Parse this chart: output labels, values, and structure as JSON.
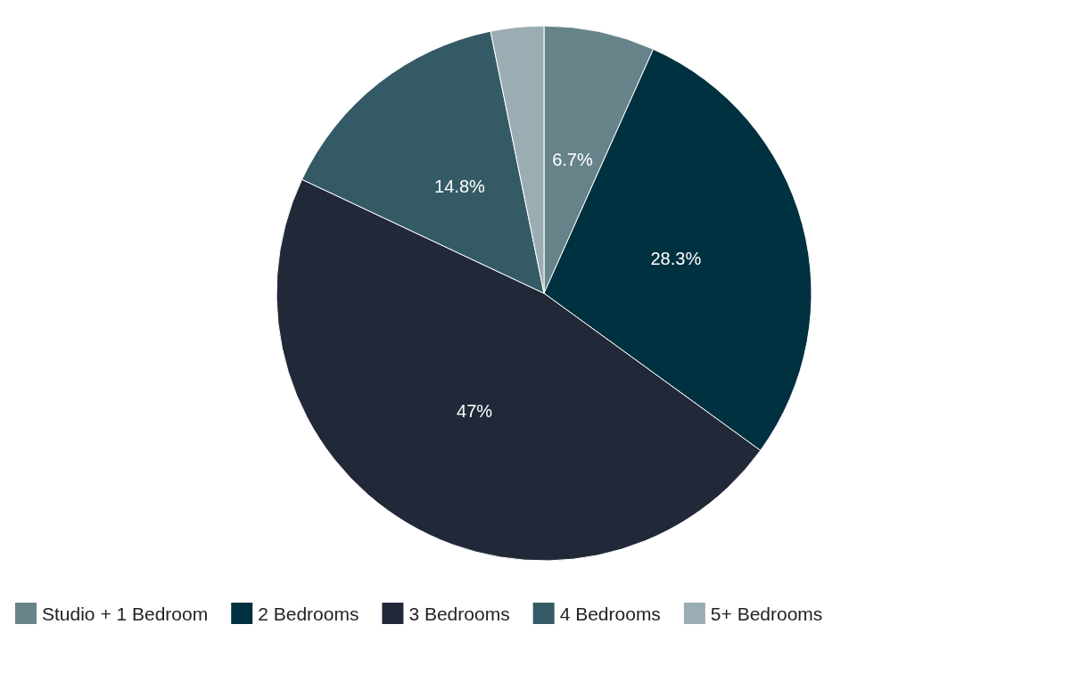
{
  "chart_data": {
    "type": "pie",
    "categories": [
      "Studio + 1 Bedroom",
      "2 Bedrooms",
      "3 Bedrooms",
      "4 Bedrooms",
      "5+ Bedrooms"
    ],
    "values": [
      6.7,
      28.3,
      47,
      14.8,
      3.2
    ],
    "colors": [
      "#66838a",
      "#003140",
      "#212938",
      "#345a66",
      "#9aadb3"
    ],
    "value_labels": [
      "6.7%",
      "28.3%",
      "47%",
      "14.8%",
      null
    ],
    "legend": "bottom left"
  }
}
